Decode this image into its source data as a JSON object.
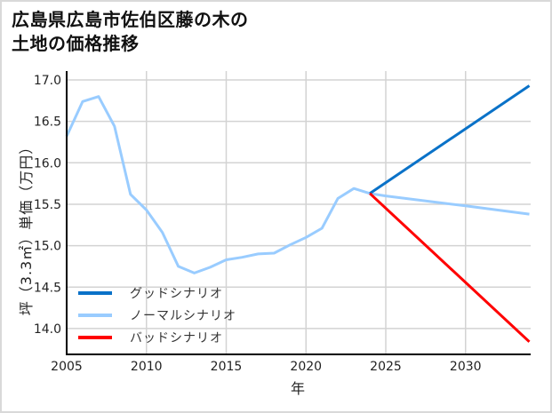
{
  "title": {
    "line1": "広島県広島市佐伯区藤の木の",
    "line2": "土地の価格推移"
  },
  "axes": {
    "ylabel": "坪（3.3㎡）単価（万円）",
    "xlabel": "年",
    "yticks": [
      "17.0",
      "16.5",
      "16.0",
      "15.5",
      "15.0",
      "14.5",
      "14.0"
    ],
    "xticks": [
      "2005",
      "2010",
      "2015",
      "2020",
      "2025",
      "2030"
    ]
  },
  "legend": {
    "items": [
      {
        "label": "グッドシナリオ",
        "color": "#0A72C8"
      },
      {
        "label": "ノーマルシナリオ",
        "color": "#99CCFF"
      },
      {
        "label": "バッドシナリオ",
        "color": "#FF0000"
      }
    ]
  },
  "colors": {
    "good": "#0A72C8",
    "normal": "#99CCFF",
    "bad": "#FF0000",
    "grid": "#D3D3D3",
    "axis": "#000000"
  },
  "chart_data": {
    "type": "line",
    "title": "広島県広島市佐伯区藤の木の土地の価格推移",
    "xlabel": "年",
    "ylabel": "坪（3.3㎡）単価（万円）",
    "xlim": [
      2005,
      2034
    ],
    "ylim": [
      13.7,
      17.05
    ],
    "grid": true,
    "legend_position": "lower left",
    "series": [
      {
        "name": "ノーマルシナリオ",
        "color": "#99CCFF",
        "x": [
          2005,
          2006,
          2007,
          2008,
          2009,
          2010,
          2011,
          2012,
          2013,
          2014,
          2015,
          2016,
          2017,
          2018,
          2019,
          2020,
          2021,
          2022,
          2023,
          2024,
          2025,
          2030,
          2034
        ],
        "values": [
          16.32,
          16.74,
          16.8,
          16.44,
          15.62,
          15.43,
          15.16,
          14.75,
          14.67,
          14.74,
          14.83,
          14.86,
          14.9,
          14.91,
          15.01,
          15.1,
          15.21,
          15.57,
          15.69,
          15.63,
          15.6,
          15.48,
          15.38
        ]
      },
      {
        "name": "グッドシナリオ",
        "color": "#0A72C8",
        "x": [
          2024,
          2034
        ],
        "values": [
          15.63,
          16.93
        ]
      },
      {
        "name": "バッドシナリオ",
        "color": "#FF0000",
        "x": [
          2024,
          2034
        ],
        "values": [
          15.63,
          13.84
        ]
      }
    ]
  }
}
